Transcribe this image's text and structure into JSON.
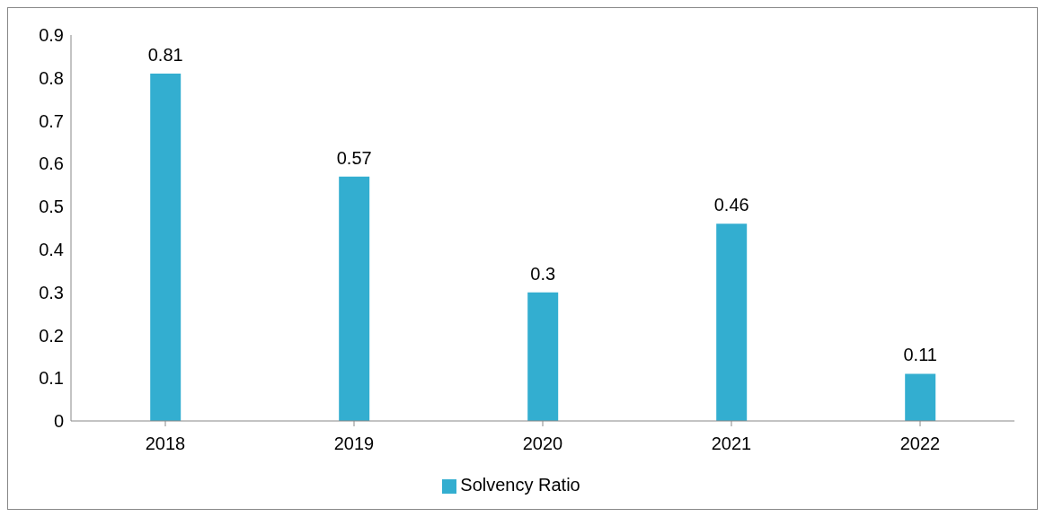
{
  "chart_data": {
    "type": "bar",
    "categories": [
      "2018",
      "2019",
      "2020",
      "2021",
      "2022"
    ],
    "series": [
      {
        "name": "Solvency Ratio",
        "color": "#33aed0",
        "values": [
          0.81,
          0.57,
          0.3,
          0.46,
          0.11
        ]
      }
    ],
    "ylim": [
      0,
      0.9
    ],
    "yticks": [
      0,
      0.1,
      0.2,
      0.3,
      0.4,
      0.5,
      0.6,
      0.7,
      0.8,
      0.9
    ],
    "grid": false,
    "legend": "bottom",
    "data_labels": true
  }
}
